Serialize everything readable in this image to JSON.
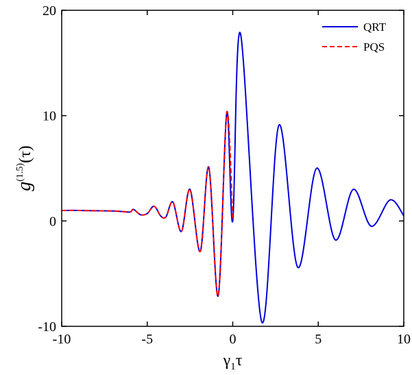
{
  "chart_data": {
    "type": "line",
    "xlim": [
      -10,
      10
    ],
    "ylim": [
      -10,
      20
    ],
    "x_ticks": [
      "-10",
      "-5",
      "0",
      "5",
      "10"
    ],
    "y_ticks": [
      "-10",
      "0",
      "10",
      "20"
    ],
    "xlabel": {
      "main": "γ",
      "sub": "1",
      "rest": "τ"
    },
    "ylabel": {
      "main": "g",
      "sup": "(1.5)",
      "rest": "(τ)"
    },
    "legend_position": "top-right",
    "grid": false,
    "series": [
      {
        "name": "QRT",
        "color": "#0000dd",
        "style": "solid",
        "points": [
          [
            -10,
            1.0
          ],
          [
            -9.0,
            1.0
          ],
          [
            -8.0,
            0.97
          ],
          [
            -7.0,
            0.95
          ],
          [
            -6.5,
            0.9
          ],
          [
            -6.0,
            0.85
          ],
          [
            -5.8,
            1.1
          ],
          [
            -5.4,
            0.6
          ],
          [
            -5.0,
            0.7
          ],
          [
            -4.6,
            1.4
          ],
          [
            -4.2,
            0.45
          ],
          [
            -3.9,
            0.4
          ],
          [
            -3.5,
            1.8
          ],
          [
            -3.0,
            -1.0
          ],
          [
            -2.5,
            3.0
          ],
          [
            -1.9,
            -2.9
          ],
          [
            -1.4,
            5.1
          ],
          [
            -0.85,
            -7.1
          ],
          [
            -0.35,
            10.3
          ],
          [
            0.0,
            0.0
          ],
          [
            0.45,
            17.8
          ],
          [
            1.7,
            -9.6
          ],
          [
            2.7,
            9.1
          ],
          [
            3.8,
            -4.4
          ],
          [
            4.9,
            5.0
          ],
          [
            6.0,
            -1.8
          ],
          [
            7.05,
            3.0
          ],
          [
            8.1,
            -0.5
          ],
          [
            9.2,
            2.0
          ],
          [
            10.0,
            0.5
          ]
        ]
      },
      {
        "name": "PQS",
        "color": "#ff0000",
        "style": "dashed",
        "points": [
          [
            -10,
            1.0
          ],
          [
            -9.0,
            1.0
          ],
          [
            -8.0,
            0.97
          ],
          [
            -7.0,
            0.95
          ],
          [
            -6.5,
            0.9
          ],
          [
            -6.0,
            0.85
          ],
          [
            -5.8,
            1.1
          ],
          [
            -5.4,
            0.6
          ],
          [
            -5.0,
            0.7
          ],
          [
            -4.6,
            1.4
          ],
          [
            -4.2,
            0.45
          ],
          [
            -3.9,
            0.4
          ],
          [
            -3.5,
            1.8
          ],
          [
            -3.0,
            -1.0
          ],
          [
            -2.5,
            3.0
          ],
          [
            -1.9,
            -2.9
          ],
          [
            -1.4,
            5.1
          ],
          [
            -0.85,
            -7.1
          ],
          [
            -0.35,
            10.3
          ],
          [
            0.0,
            0.0
          ]
        ]
      }
    ]
  }
}
